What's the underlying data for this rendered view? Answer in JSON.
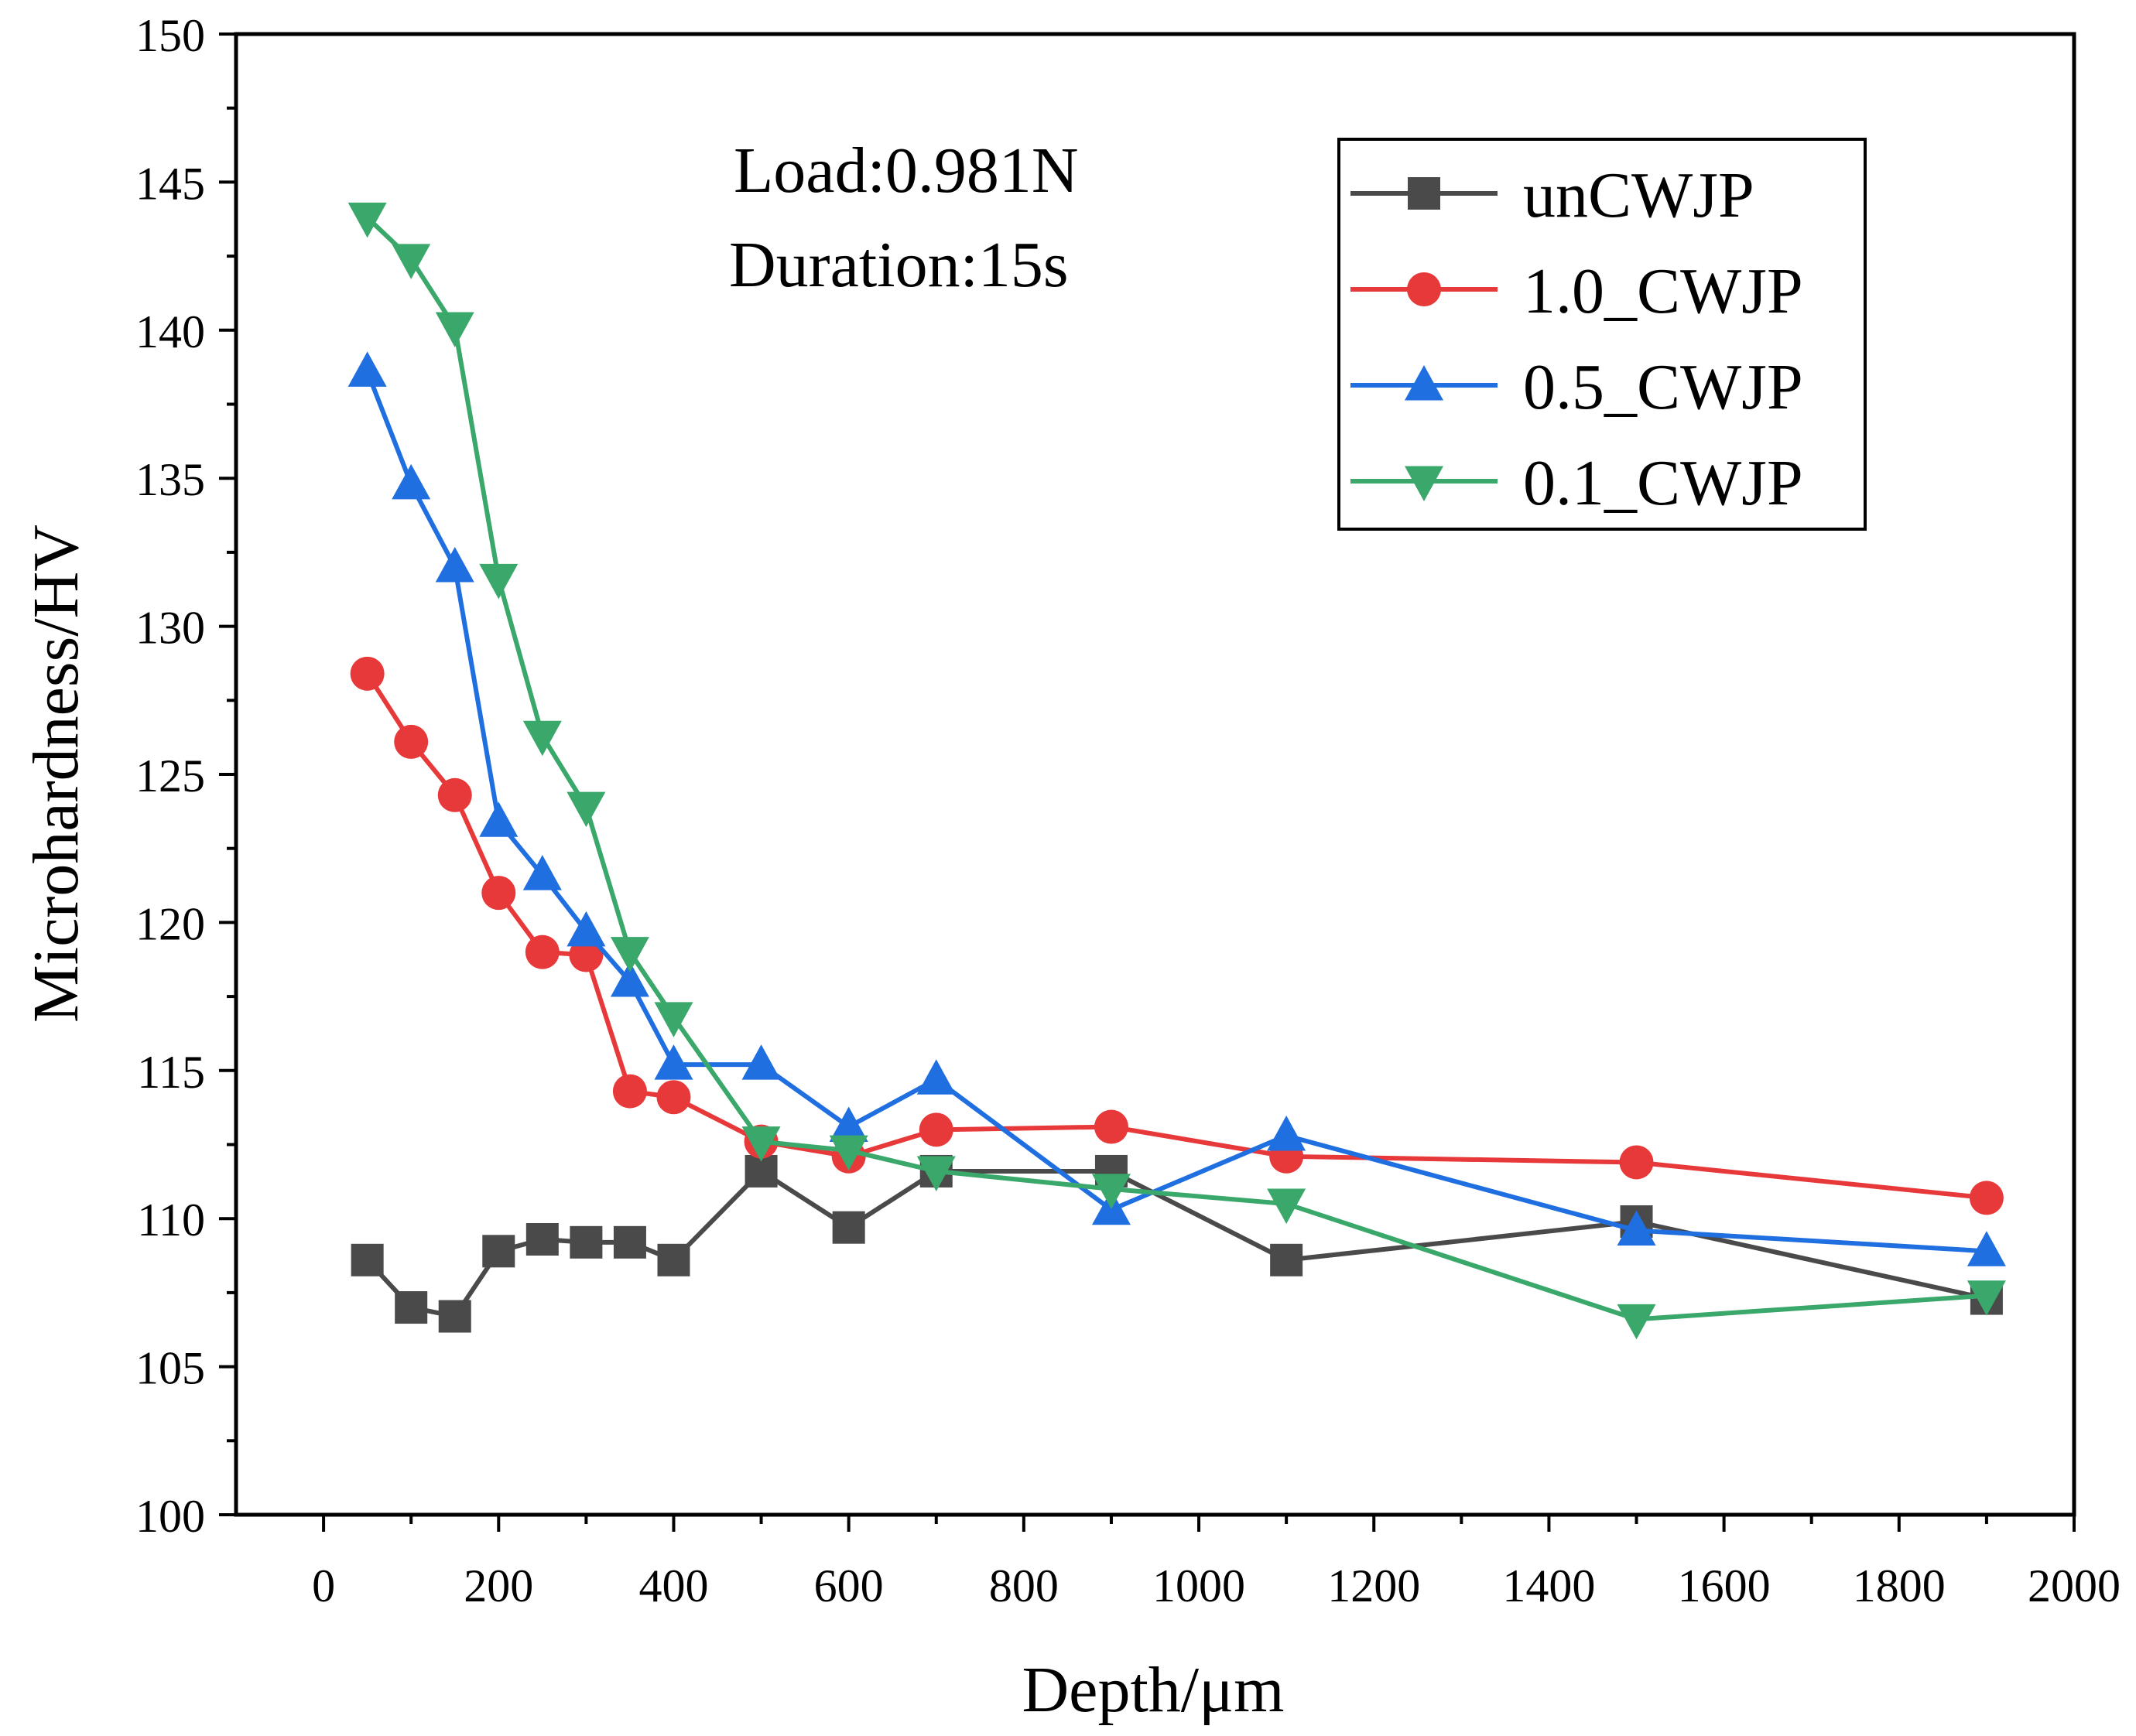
{
  "chart_data": {
    "type": "line",
    "title": "",
    "xlabel": "Depth/μm",
    "ylabel": "Microhardness/HV",
    "xlim": [
      -100,
      2000
    ],
    "ylim": [
      100,
      150
    ],
    "x_ticks": [
      0,
      200,
      400,
      600,
      800,
      1000,
      1200,
      1400,
      1600,
      1800,
      2000
    ],
    "y_ticks": [
      100,
      105,
      110,
      115,
      120,
      125,
      130,
      135,
      140,
      145,
      150
    ],
    "legend_position": "top-right",
    "annotations": [
      "Load:0.981N",
      "Duration:15s"
    ],
    "series": [
      {
        "name": "unCWJP",
        "color": "#4a4a4a",
        "marker": "square",
        "x": [
          50,
          100,
          150,
          200,
          250,
          300,
          350,
          400,
          500,
          600,
          700,
          900,
          1100,
          1500,
          1900
        ],
        "y": [
          108.6,
          107.0,
          106.7,
          108.9,
          109.3,
          109.2,
          109.2,
          108.6,
          111.6,
          109.7,
          111.6,
          111.6,
          108.6,
          109.9,
          107.3
        ]
      },
      {
        "name": "1.0_CWJP",
        "color": "#e8393a",
        "marker": "circle",
        "x": [
          50,
          100,
          150,
          200,
          250,
          300,
          350,
          400,
          500,
          600,
          700,
          900,
          1100,
          1500,
          1900
        ],
        "y": [
          128.4,
          126.1,
          124.3,
          121.0,
          119.0,
          118.9,
          114.3,
          114.1,
          112.6,
          112.1,
          113.0,
          113.1,
          112.1,
          111.9,
          110.7
        ]
      },
      {
        "name": "0.5_CWJP",
        "color": "#1f6fe0",
        "marker": "triangle-up",
        "x": [
          50,
          100,
          150,
          200,
          250,
          300,
          350,
          400,
          500,
          600,
          700,
          900,
          1100,
          1500,
          1900
        ],
        "y": [
          138.6,
          134.8,
          132.0,
          123.4,
          121.6,
          119.7,
          118.0,
          115.2,
          115.2,
          113.1,
          114.7,
          110.3,
          112.8,
          109.6,
          108.9
        ]
      },
      {
        "name": "0.1_CWJP",
        "color": "#3aa86b",
        "marker": "triangle-down",
        "x": [
          50,
          100,
          150,
          200,
          250,
          300,
          350,
          400,
          500,
          600,
          700,
          900,
          1100,
          1500,
          1900
        ],
        "y": [
          143.8,
          142.4,
          140.1,
          131.6,
          126.3,
          123.9,
          119.0,
          116.8,
          112.6,
          112.3,
          111.6,
          111.0,
          110.5,
          106.6,
          107.4
        ]
      }
    ]
  }
}
